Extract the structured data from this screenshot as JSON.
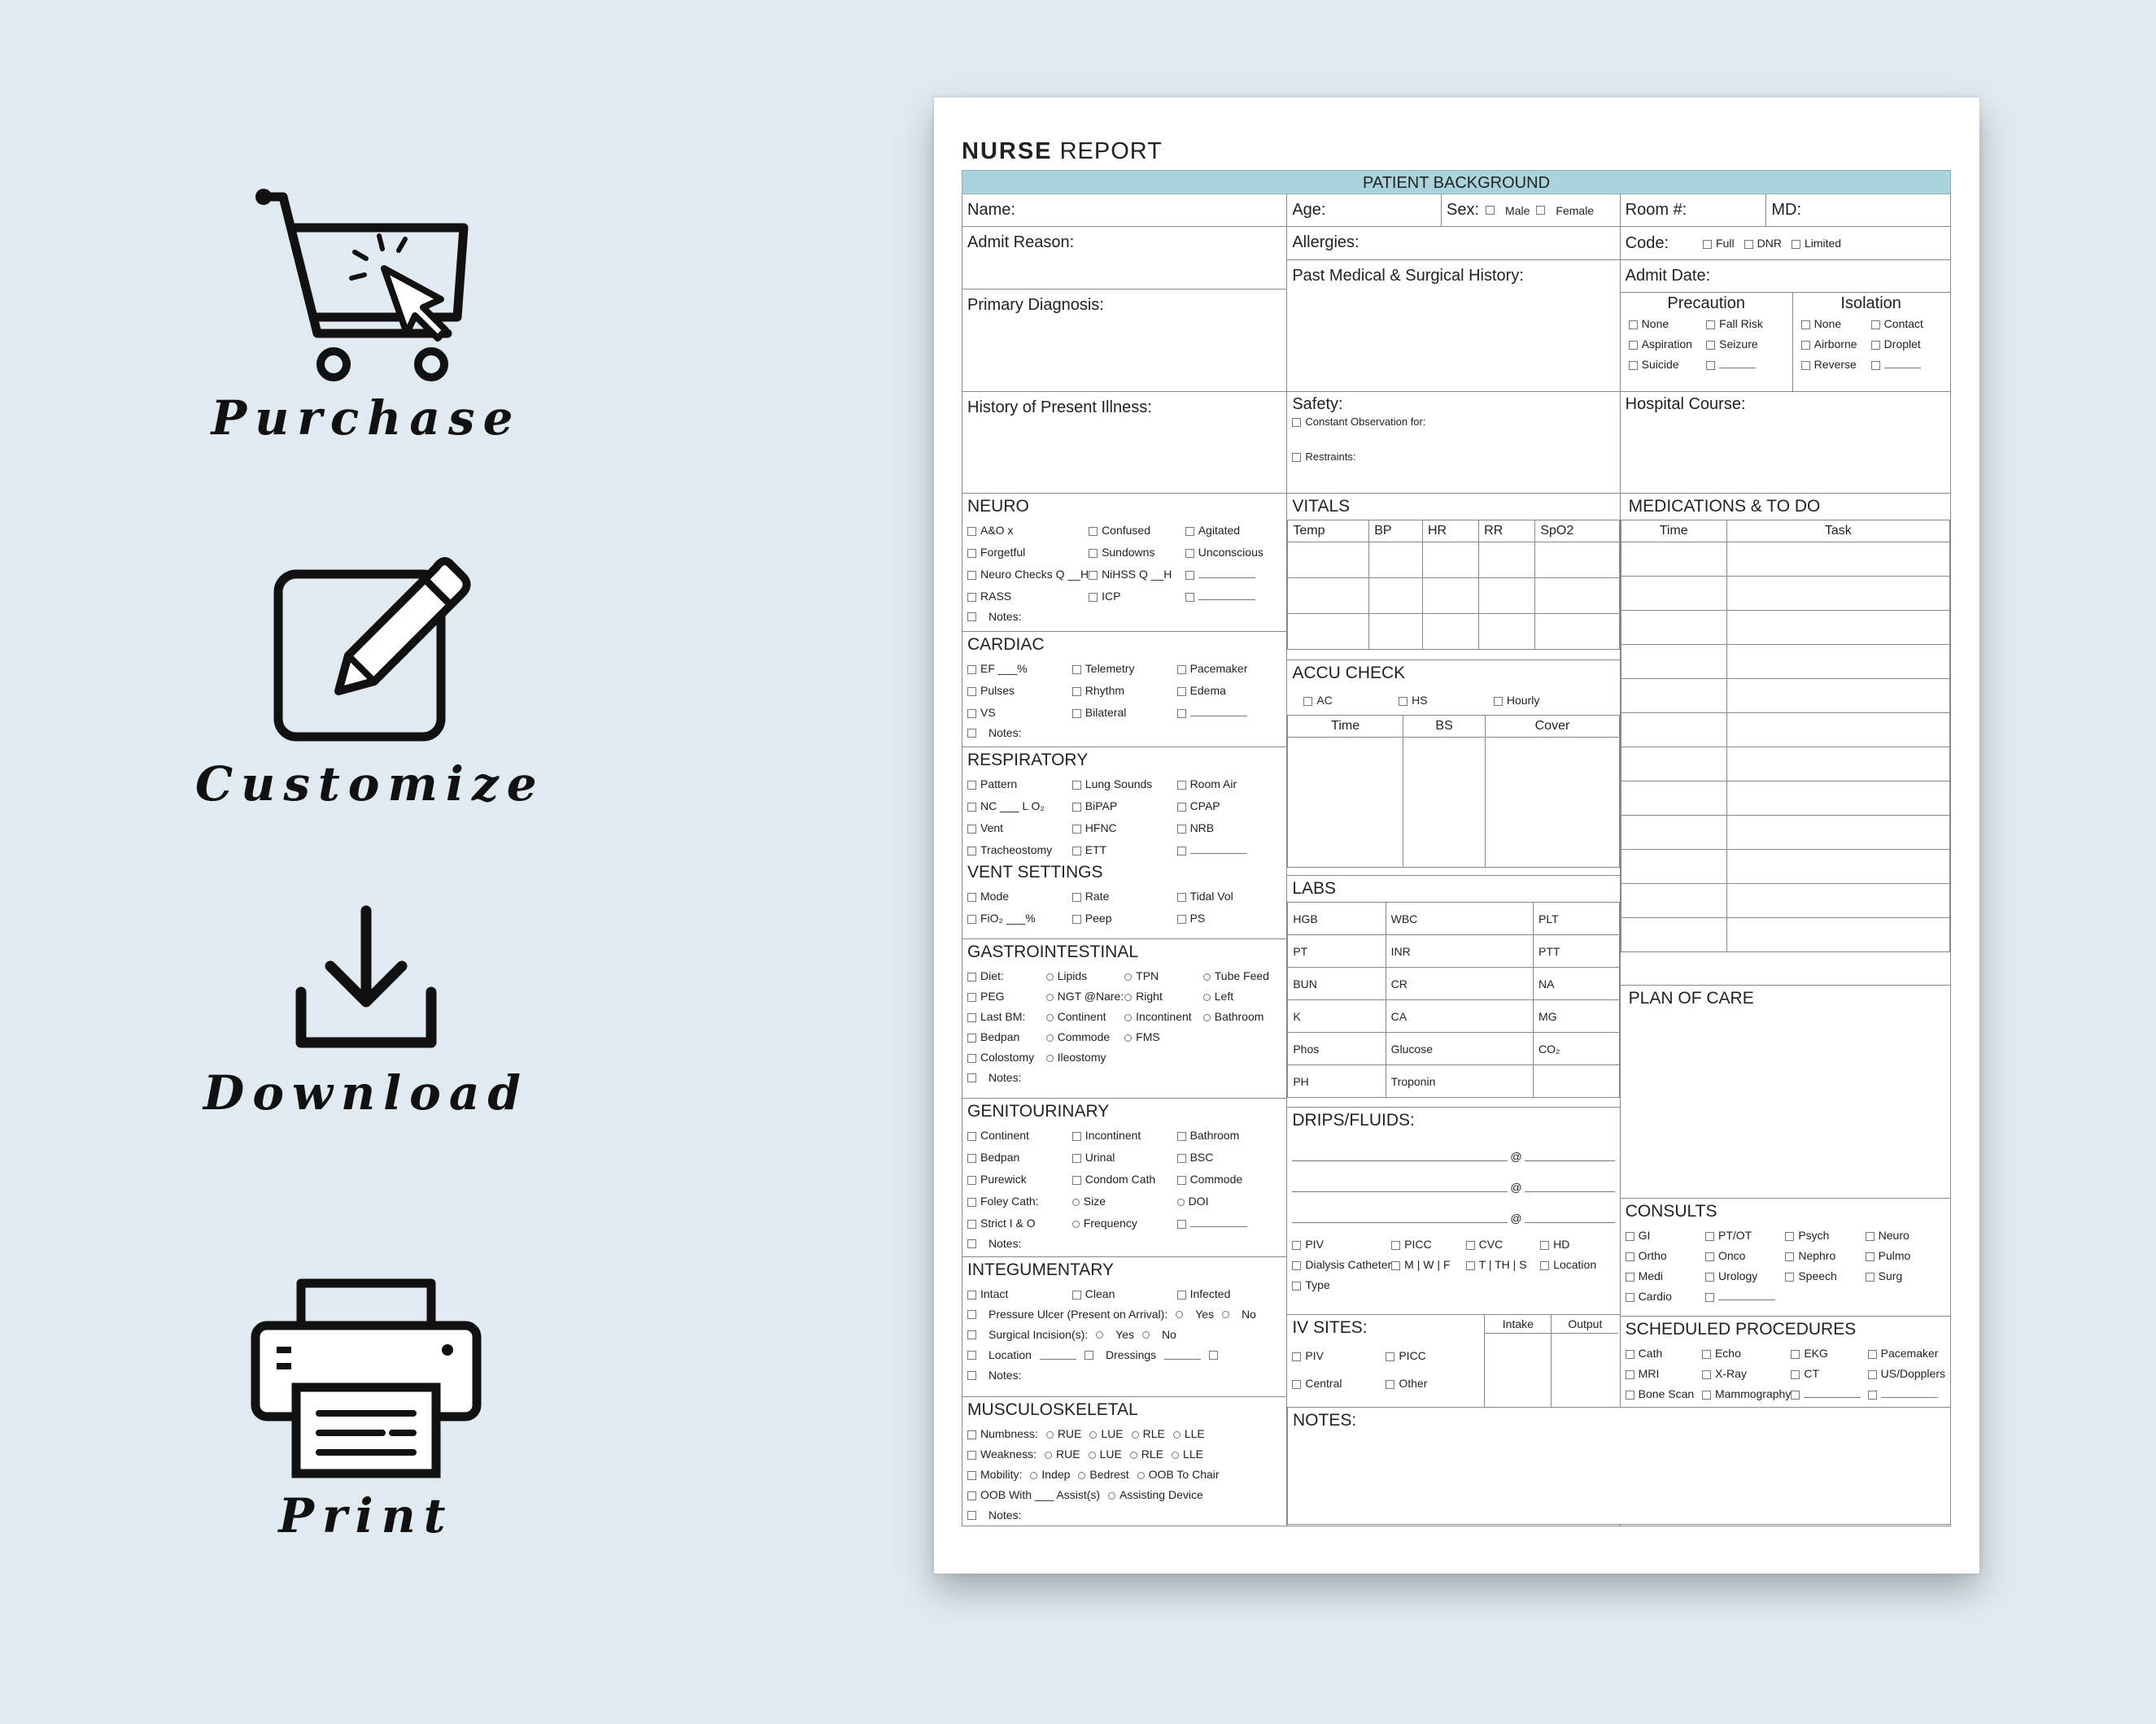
{
  "actions": [
    {
      "label": "Purchase",
      "icon": "cart-cursor-icon"
    },
    {
      "label": "Customize",
      "icon": "pencil-edit-icon"
    },
    {
      "label": "Download",
      "icon": "download-icon"
    },
    {
      "label": "Print",
      "icon": "printer-icon"
    }
  ],
  "form": {
    "title_a": "NURSE",
    "title_b": "REPORT",
    "band": "PATIENT BACKGROUND",
    "name": "Name:",
    "age": "Age:",
    "sex": "Sex:",
    "male": "Male",
    "female": "Female",
    "room": "Room #:",
    "md": "MD:",
    "admit_reason": "Admit Reason:",
    "allergies": "Allergies:",
    "code": "Code:",
    "code_opts": [
      "Full",
      "DNR",
      "Limited"
    ],
    "primary_dx": "Primary Diagnosis:",
    "past_history": "Past Medical & Surgical History:",
    "admit_date": "Admit Date:",
    "precaution": "Precaution",
    "isolation": "Isolation",
    "precaution_opts": [
      "None",
      "Fall Risk",
      "Aspiration",
      "Seizure",
      "Suicide",
      ""
    ],
    "isolation_opts": [
      "None",
      "Contact",
      "Airborne",
      "Droplet",
      "Reverse",
      ""
    ],
    "hpi": "History of Present Illness:",
    "safety": "Safety:",
    "safety_opts": [
      "Constant Observation for:",
      "Restraints:"
    ],
    "hospital_course": "Hospital Course:",
    "neuro": {
      "title": "NEURO",
      "items": [
        "A&O x",
        "Confused",
        "Agitated",
        "Forgetful",
        "Sundowns",
        "Unconscious",
        "Neuro Checks Q __H",
        "NiHSS Q __H",
        "",
        "RASS",
        "ICP",
        ""
      ],
      "notes": "Notes:"
    },
    "cardiac": {
      "title": "CARDIAC",
      "items": [
        "EF ___%",
        "Telemetry",
        "Pacemaker",
        "Pulses",
        "Rhythm",
        "Edema",
        "VS",
        "Bilateral",
        ""
      ],
      "notes": "Notes:"
    },
    "resp": {
      "title": "RESPIRATORY",
      "items": [
        "Pattern",
        "Lung Sounds",
        "Room Air",
        "NC ___ L O₂",
        "BiPAP",
        "CPAP",
        "Vent",
        "HFNC",
        "NRB",
        "Tracheostomy",
        "ETT",
        ""
      ]
    },
    "vent": {
      "title": "VENT SETTINGS",
      "items": [
        "Mode",
        "Rate",
        "Tidal Vol",
        "FiO₂ ___%",
        "Peep",
        "PS"
      ]
    },
    "gi": {
      "title": "GASTROINTESTINAL",
      "rows": [
        [
          "Diet:",
          "Lipids",
          "TPN",
          "Tube Feed"
        ],
        [
          "PEG",
          "NGT @Nare:",
          "Right",
          "Left"
        ],
        [
          "Last BM:",
          "Continent",
          "Incontinent",
          "Bathroom"
        ],
        [
          "Bedpan",
          "Commode",
          "FMS",
          ""
        ],
        [
          "Colostomy",
          "Ileostomy",
          "",
          ""
        ]
      ],
      "notes": "Notes:"
    },
    "gu": {
      "title": "GENITOURINARY",
      "items": [
        "Continent",
        "Incontinent",
        "Bathroom",
        "Bedpan",
        "Urinal",
        "BSC",
        "Purewick",
        "Condom Cath",
        "Commode",
        "Foley Cath:",
        "Size",
        "DOI",
        "Strict I & O",
        "Frequency",
        ""
      ],
      "notes": "Notes:"
    },
    "integ": {
      "title": "INTEGUMENTARY",
      "items": [
        "Intact",
        "Clean",
        "Infected"
      ],
      "ulcer": "Pressure Ulcer (Present on Arrival):",
      "yes": "Yes",
      "no": "No",
      "incision": "Surgical Incision(s):",
      "location": "Location",
      "dressings": "Dressings",
      "notes": "Notes:"
    },
    "musc": {
      "title": "MUSCULOSKELETAL",
      "rows": [
        [
          "Numbness:",
          "RUE",
          "LUE",
          "RLE",
          "LLE"
        ],
        [
          "Weakness:",
          "RUE",
          "LUE",
          "RLE",
          "LLE"
        ],
        [
          "Mobility:",
          "Indep",
          "Bedrest",
          "OOB To Chair",
          ""
        ],
        [
          "OOB With ___ Assist(s)",
          "Assisting Device",
          "",
          "",
          ""
        ]
      ],
      "notes": "Notes:"
    },
    "vitals": {
      "title": "VITALS",
      "cols": [
        "Temp",
        "BP",
        "HR",
        "RR",
        "SpO2"
      ]
    },
    "accu": {
      "title": "ACCU CHECK",
      "opts": [
        "AC",
        "HS",
        "Hourly"
      ],
      "cols": [
        "Time",
        "BS",
        "Cover"
      ]
    },
    "labs": {
      "title": "LABS",
      "rows": [
        [
          "HGB",
          "WBC",
          "PLT"
        ],
        [
          "PT",
          "INR",
          "PTT"
        ],
        [
          "BUN",
          "CR",
          "NA"
        ],
        [
          "K",
          "CA",
          "MG"
        ],
        [
          "Phos",
          "Glucose",
          "CO₂"
        ],
        [
          "PH",
          "Troponin",
          ""
        ]
      ]
    },
    "drips": {
      "title": "DRIPS/FLUIDS:",
      "at": "@",
      "opts": [
        "PIV",
        "PICC",
        "CVC",
        "HD",
        "Dialysis Catheter",
        "M | W | F",
        "T | TH | S",
        "Location",
        "Type"
      ]
    },
    "iv": {
      "title": "IV SITES:",
      "intake": "Intake",
      "output": "Output",
      "opts": [
        "PIV",
        "PICC",
        "Central",
        "Other"
      ]
    },
    "meds": {
      "title": "MEDICATIONS & TO DO",
      "cols": [
        "Time",
        "Task"
      ]
    },
    "plan": "PLAN OF CARE",
    "consults": {
      "title": "CONSULTS",
      "items": [
        "GI",
        "PT/OT",
        "Psych",
        "Neuro",
        "Ortho",
        "Onco",
        "Nephro",
        "Pulmo",
        "Medi",
        "Urology",
        "Speech",
        "Surg",
        "Cardio",
        "",
        "",
        ""
      ]
    },
    "procedures": {
      "title": "SCHEDULED PROCEDURES",
      "items": [
        "Cath",
        "Echo",
        "EKG",
        "Pacemaker",
        "MRI",
        "X-Ray",
        "CT",
        "US/Dopplers",
        "Bone Scan",
        "Mammography",
        "",
        ""
      ]
    },
    "notes": "NOTES:"
  }
}
